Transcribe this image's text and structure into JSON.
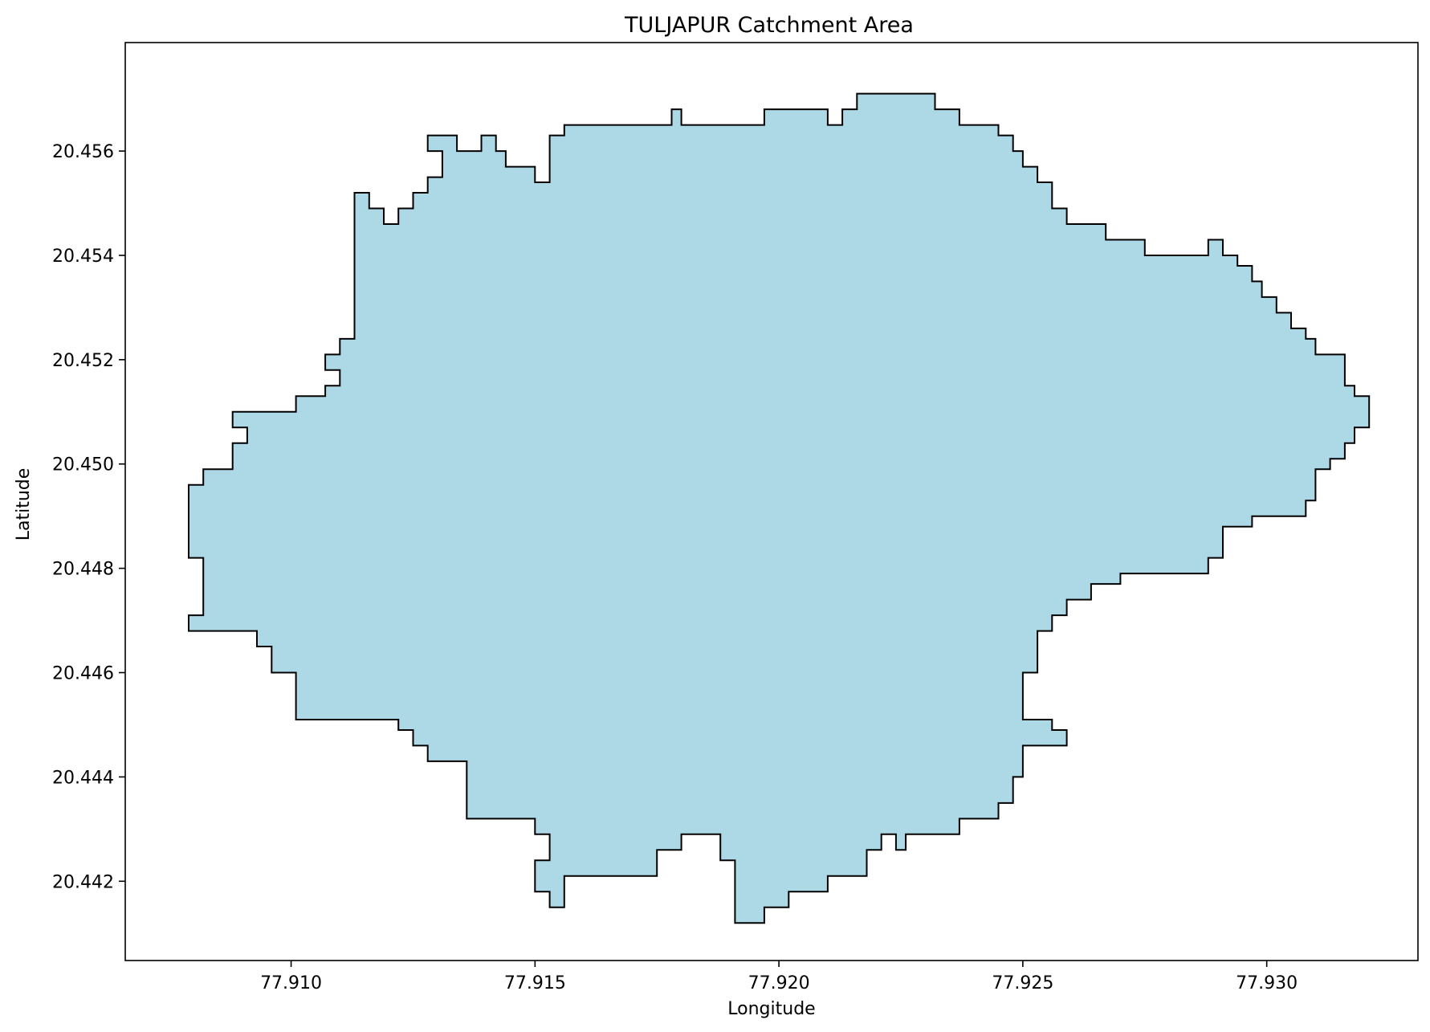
{
  "chart_data": {
    "type": "area",
    "title": "TULJAPUR Catchment Area",
    "xlabel": "Longitude",
    "ylabel": "Latitude",
    "xlim": [
      77.9066,
      77.9331
    ],
    "ylim": [
      20.44048,
      20.45808
    ],
    "x_ticks": [
      {
        "value": 77.91,
        "label": "77.910"
      },
      {
        "value": 77.915,
        "label": "77.915"
      },
      {
        "value": 77.92,
        "label": "77.920"
      },
      {
        "value": 77.925,
        "label": "77.925"
      },
      {
        "value": 77.93,
        "label": "77.930"
      }
    ],
    "y_ticks": [
      {
        "value": 20.442,
        "label": "20.442"
      },
      {
        "value": 20.444,
        "label": "20.444"
      },
      {
        "value": 20.446,
        "label": "20.446"
      },
      {
        "value": 20.448,
        "label": "20.448"
      },
      {
        "value": 20.45,
        "label": "20.450"
      },
      {
        "value": 20.452,
        "label": "20.452"
      },
      {
        "value": 20.454,
        "label": "20.454"
      },
      {
        "value": 20.456,
        "label": "20.456"
      }
    ],
    "grid": false,
    "fill_color": "#add8e6",
    "edge_color": "#000000",
    "boundary": [
      [
        77.9079,
        20.4468
      ],
      [
        77.9079,
        20.4471
      ],
      [
        77.9082,
        20.4471
      ],
      [
        77.9082,
        20.4482
      ],
      [
        77.9079,
        20.4482
      ],
      [
        77.9079,
        20.4496
      ],
      [
        77.9082,
        20.4496
      ],
      [
        77.9082,
        20.4499
      ],
      [
        77.9088,
        20.4499
      ],
      [
        77.9088,
        20.4504
      ],
      [
        77.9091,
        20.4504
      ],
      [
        77.9091,
        20.4507
      ],
      [
        77.9088,
        20.4507
      ],
      [
        77.9088,
        20.451
      ],
      [
        77.9101,
        20.451
      ],
      [
        77.9101,
        20.4513
      ],
      [
        77.9107,
        20.4513
      ],
      [
        77.9107,
        20.4515
      ],
      [
        77.911,
        20.4515
      ],
      [
        77.911,
        20.4518
      ],
      [
        77.9107,
        20.4518
      ],
      [
        77.9107,
        20.4521
      ],
      [
        77.911,
        20.4521
      ],
      [
        77.911,
        20.4524
      ],
      [
        77.9113,
        20.4524
      ],
      [
        77.9113,
        20.4552
      ],
      [
        77.9116,
        20.4552
      ],
      [
        77.9116,
        20.4549
      ],
      [
        77.9119,
        20.4549
      ],
      [
        77.9119,
        20.4546
      ],
      [
        77.9122,
        20.4546
      ],
      [
        77.9122,
        20.4549
      ],
      [
        77.9125,
        20.4549
      ],
      [
        77.9125,
        20.4552
      ],
      [
        77.9128,
        20.4552
      ],
      [
        77.9128,
        20.4555
      ],
      [
        77.9131,
        20.4555
      ],
      [
        77.9131,
        20.456
      ],
      [
        77.9128,
        20.456
      ],
      [
        77.9128,
        20.4563
      ],
      [
        77.9134,
        20.4563
      ],
      [
        77.9134,
        20.456
      ],
      [
        77.9139,
        20.456
      ],
      [
        77.9139,
        20.4563
      ],
      [
        77.9142,
        20.4563
      ],
      [
        77.9142,
        20.456
      ],
      [
        77.9144,
        20.456
      ],
      [
        77.9144,
        20.4557
      ],
      [
        77.915,
        20.4557
      ],
      [
        77.915,
        20.4554
      ],
      [
        77.9153,
        20.4554
      ],
      [
        77.9153,
        20.4563
      ],
      [
        77.9156,
        20.4563
      ],
      [
        77.9156,
        20.4565
      ],
      [
        77.9178,
        20.4565
      ],
      [
        77.9178,
        20.4568
      ],
      [
        77.918,
        20.4568
      ],
      [
        77.918,
        20.4565
      ],
      [
        77.9197,
        20.4565
      ],
      [
        77.9197,
        20.4568
      ],
      [
        77.921,
        20.4568
      ],
      [
        77.921,
        20.4565
      ],
      [
        77.9213,
        20.4565
      ],
      [
        77.9213,
        20.4568
      ],
      [
        77.9216,
        20.4568
      ],
      [
        77.9216,
        20.4571
      ],
      [
        77.9218,
        20.4571
      ],
      [
        77.9218,
        20.4571
      ],
      [
        77.9232,
        20.4571
      ],
      [
        77.9232,
        20.4568
      ],
      [
        77.9237,
        20.4568
      ],
      [
        77.9237,
        20.4565
      ],
      [
        77.9245,
        20.4565
      ],
      [
        77.9245,
        20.4563
      ],
      [
        77.9248,
        20.4563
      ],
      [
        77.9248,
        20.456
      ],
      [
        77.925,
        20.456
      ],
      [
        77.925,
        20.4557
      ],
      [
        77.9253,
        20.4557
      ],
      [
        77.9253,
        20.4554
      ],
      [
        77.9256,
        20.4554
      ],
      [
        77.9256,
        20.4549
      ],
      [
        77.9259,
        20.4549
      ],
      [
        77.9259,
        20.4546
      ],
      [
        77.9267,
        20.4546
      ],
      [
        77.9267,
        20.4543
      ],
      [
        77.9275,
        20.4543
      ],
      [
        77.9275,
        20.454
      ],
      [
        77.9288,
        20.454
      ],
      [
        77.9288,
        20.4543
      ],
      [
        77.9291,
        20.4543
      ],
      [
        77.9291,
        20.454
      ],
      [
        77.9294,
        20.454
      ],
      [
        77.9294,
        20.4538
      ],
      [
        77.9297,
        20.4538
      ],
      [
        77.9297,
        20.4535
      ],
      [
        77.9299,
        20.4535
      ],
      [
        77.9299,
        20.4532
      ],
      [
        77.9302,
        20.4532
      ],
      [
        77.9302,
        20.4529
      ],
      [
        77.9305,
        20.4529
      ],
      [
        77.9305,
        20.4526
      ],
      [
        77.9308,
        20.4526
      ],
      [
        77.9308,
        20.4524
      ],
      [
        77.931,
        20.4524
      ],
      [
        77.931,
        20.4521
      ],
      [
        77.9316,
        20.4521
      ],
      [
        77.9316,
        20.4515
      ],
      [
        77.9318,
        20.4515
      ],
      [
        77.9318,
        20.4513
      ],
      [
        77.9321,
        20.4513
      ],
      [
        77.9321,
        20.4507
      ],
      [
        77.9318,
        20.4507
      ],
      [
        77.9318,
        20.4504
      ],
      [
        77.9316,
        20.4504
      ],
      [
        77.9316,
        20.4501
      ],
      [
        77.9313,
        20.4501
      ],
      [
        77.9313,
        20.4499
      ],
      [
        77.931,
        20.4499
      ],
      [
        77.931,
        20.4493
      ],
      [
        77.9308,
        20.4493
      ],
      [
        77.9308,
        20.449
      ],
      [
        77.9297,
        20.449
      ],
      [
        77.9297,
        20.4488
      ],
      [
        77.9291,
        20.4488
      ],
      [
        77.9291,
        20.4482
      ],
      [
        77.9288,
        20.4482
      ],
      [
        77.9288,
        20.4479
      ],
      [
        77.927,
        20.4479
      ],
      [
        77.927,
        20.4477
      ],
      [
        77.9264,
        20.4477
      ],
      [
        77.9264,
        20.4474
      ],
      [
        77.9259,
        20.4474
      ],
      [
        77.9259,
        20.4471
      ],
      [
        77.9256,
        20.4471
      ],
      [
        77.9256,
        20.4468
      ],
      [
        77.9253,
        20.4468
      ],
      [
        77.9253,
        20.446
      ],
      [
        77.925,
        20.446
      ],
      [
        77.925,
        20.4451
      ],
      [
        77.9256,
        20.4451
      ],
      [
        77.9256,
        20.4449
      ],
      [
        77.9259,
        20.4449
      ],
      [
        77.9259,
        20.4446
      ],
      [
        77.925,
        20.4446
      ],
      [
        77.925,
        20.444
      ],
      [
        77.9248,
        20.444
      ],
      [
        77.9248,
        20.4435
      ],
      [
        77.9245,
        20.4435
      ],
      [
        77.9245,
        20.4432
      ],
      [
        77.9237,
        20.4432
      ],
      [
        77.9237,
        20.4429
      ],
      [
        77.9226,
        20.4429
      ],
      [
        77.9226,
        20.4426
      ],
      [
        77.9224,
        20.4426
      ],
      [
        77.9224,
        20.4429
      ],
      [
        77.9221,
        20.4429
      ],
      [
        77.9221,
        20.4426
      ],
      [
        77.9218,
        20.4426
      ],
      [
        77.9218,
        20.4421
      ],
      [
        77.921,
        20.4421
      ],
      [
        77.921,
        20.4418
      ],
      [
        77.9202,
        20.4418
      ],
      [
        77.9202,
        20.4415
      ],
      [
        77.9197,
        20.4415
      ],
      [
        77.9197,
        20.4412
      ],
      [
        77.9191,
        20.4412
      ],
      [
        77.9191,
        20.4424
      ],
      [
        77.9188,
        20.4424
      ],
      [
        77.9188,
        20.4429
      ],
      [
        77.918,
        20.4429
      ],
      [
        77.918,
        20.4426
      ],
      [
        77.9175,
        20.4426
      ],
      [
        77.9175,
        20.4421
      ],
      [
        77.9156,
        20.4421
      ],
      [
        77.9156,
        20.4415
      ],
      [
        77.9153,
        20.4415
      ],
      [
        77.9153,
        20.4418
      ],
      [
        77.915,
        20.4418
      ],
      [
        77.915,
        20.4424
      ],
      [
        77.9153,
        20.4424
      ],
      [
        77.9153,
        20.4429
      ],
      [
        77.915,
        20.4429
      ],
      [
        77.915,
        20.4432
      ],
      [
        77.9136,
        20.4432
      ],
      [
        77.9136,
        20.4443
      ],
      [
        77.9128,
        20.4443
      ],
      [
        77.9128,
        20.4446
      ],
      [
        77.9125,
        20.4446
      ],
      [
        77.9125,
        20.4449
      ],
      [
        77.9122,
        20.4449
      ],
      [
        77.9122,
        20.4451
      ],
      [
        77.9101,
        20.4451
      ],
      [
        77.9101,
        20.446
      ],
      [
        77.9096,
        20.446
      ],
      [
        77.9096,
        20.4465
      ],
      [
        77.9093,
        20.4465
      ],
      [
        77.9093,
        20.4468
      ]
    ]
  }
}
